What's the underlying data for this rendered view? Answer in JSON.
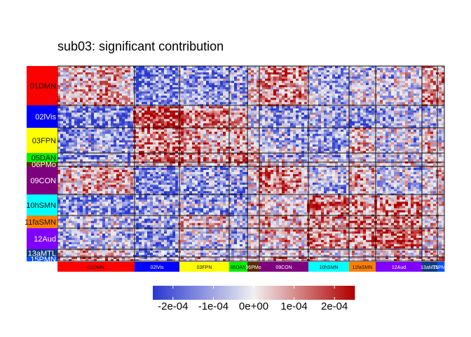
{
  "chart_data": {
    "type": "heatmap",
    "title": "sub03: significant contribution",
    "xlabel": "",
    "ylabel": "",
    "networks": [
      {
        "label": "01DMN",
        "color": "#ff0000",
        "pattern": "dmn"
      },
      {
        "label": "02lVis",
        "color": "#0000ff",
        "pattern": "vis"
      },
      {
        "label": "03FPN",
        "color": "#ffff00",
        "pattern": "fpn"
      },
      {
        "label": "05DAN",
        "color": "#00ee00",
        "pattern": "dan"
      },
      {
        "label": "06PMo",
        "color": "#5a2a00",
        "pattern": "pmo"
      },
      {
        "label": "09CON",
        "color": "#7f007f",
        "pattern": "con"
      },
      {
        "label": "10hSMN",
        "color": "#00ffff",
        "pattern": "hsmn"
      },
      {
        "label": "11faSMN",
        "color": "#ff7f00",
        "pattern": "fasmn"
      },
      {
        "label": "12Aud",
        "color": "#8000ff",
        "pattern": "aud"
      },
      {
        "label": "13aMTL",
        "color": "#103a80",
        "pattern": "mtl"
      },
      {
        "label": "15PMN",
        "color": "#0050ff",
        "pattern": "pmn"
      }
    ],
    "row_labels": [
      "01DMN",
      "02lVis",
      "03FPN",
      "05DAN",
      "06PMo",
      "09CON",
      "10hSMN",
      "11faSMN",
      "12Aud",
      "13aMTL",
      "15PMN"
    ],
    "column_labels": [
      "01DMN",
      "02lVis",
      "03FPN",
      "05DAN",
      "06PMo",
      "09CON",
      "10hSMN",
      "11faSMN",
      "12Aud",
      "13aMTL",
      "15PMN"
    ],
    "colorbar": {
      "min": -0.00025,
      "max": 0.00025,
      "low_color": "#2a3ad0",
      "mid_color": "#f0f0f0",
      "high_color": "#b00000",
      "ticks": [
        {
          "value": -0.0002,
          "label": "-2e-04"
        },
        {
          "value": -0.0001,
          "label": "-1e-04"
        },
        {
          "value": 0,
          "label": "0e+00"
        },
        {
          "value": 0.0001,
          "label": "1e-04"
        },
        {
          "value": 0.0002,
          "label": "2e-04"
        }
      ]
    }
  }
}
